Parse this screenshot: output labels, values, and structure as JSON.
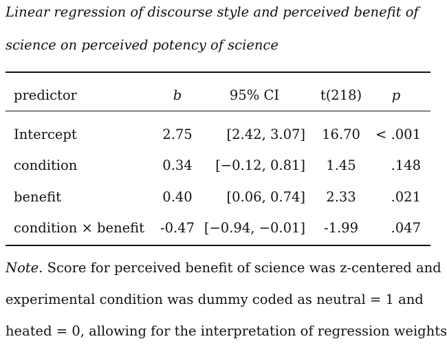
{
  "caption": {
    "line1": "Linear regression of discourse style and perceived benefit of",
    "line2": "science on perceived potency of science"
  },
  "table": {
    "headers": {
      "predictor": "predictor",
      "b": "b",
      "ci": "95% CI",
      "t": "t(218)",
      "p": "p"
    },
    "rows": [
      {
        "predictor": "Intercept",
        "b": "2.75",
        "ci": "[2.42, 3.07]",
        "t": "16.70",
        "p": "< .001"
      },
      {
        "predictor": "condition",
        "b": "0.34",
        "ci": "[−0.12, 0.81]",
        "t": "1.45",
        "p": ".148"
      },
      {
        "predictor": "benefit",
        "b": "0.40",
        "ci": "[0.06, 0.74]",
        "t": "2.33",
        "p": ".021"
      },
      {
        "predictor": "condition × benefit",
        "b": "-0.47",
        "ci": "[−0.94, −0.01]",
        "t": "-1.99",
        "p": ".047"
      }
    ]
  },
  "note": {
    "label": "Note.",
    "line1_rest": " Score for perceived benefit of science was z-centered and",
    "line2": "experimental condition was dummy coded as neutral = 1 and",
    "line3": "heated = 0, allowing for the interpretation of regression weights"
  }
}
